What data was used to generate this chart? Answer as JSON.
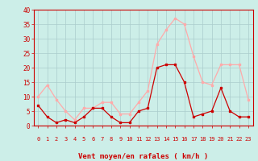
{
  "hours": [
    0,
    1,
    2,
    3,
    4,
    5,
    6,
    7,
    8,
    9,
    10,
    11,
    12,
    13,
    14,
    15,
    16,
    17,
    18,
    19,
    20,
    21,
    22,
    23
  ],
  "wind_avg": [
    7,
    3,
    1,
    2,
    1,
    3,
    6,
    6,
    3,
    1,
    1,
    5,
    6,
    20,
    21,
    21,
    15,
    3,
    4,
    5,
    13,
    5,
    3,
    3
  ],
  "wind_gust": [
    10,
    14,
    9,
    5,
    2,
    6,
    6,
    8,
    8,
    4,
    4,
    8,
    12,
    28,
    33,
    37,
    35,
    24,
    15,
    14,
    21,
    21,
    21,
    9
  ],
  "color_avg": "#cc0000",
  "color_gust": "#ffaaaa",
  "bg_color": "#cceee8",
  "grid_color": "#aacccc",
  "xlabel": "Vent moyen/en rafales ( km/h )",
  "xlabel_color": "#cc0000",
  "tick_color": "#cc0000",
  "ylim": [
    0,
    40
  ],
  "yticks": [
    0,
    5,
    10,
    15,
    20,
    25,
    30,
    35,
    40
  ],
  "marker_size": 2.0,
  "line_width": 0.9
}
